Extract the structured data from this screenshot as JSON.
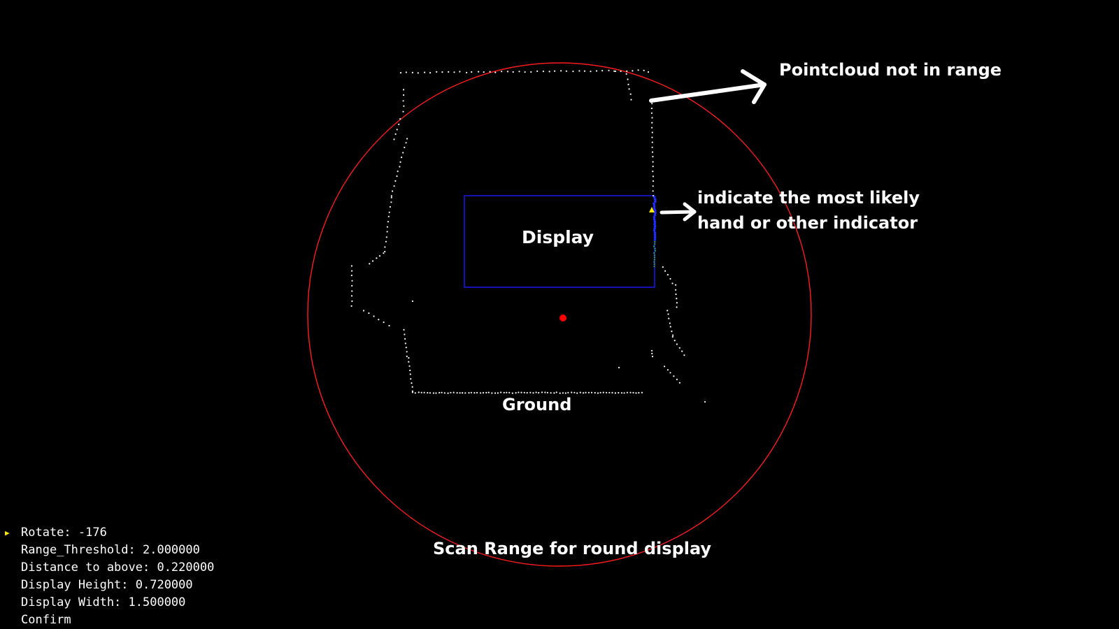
{
  "annotations": {
    "pointcloud": "Pointcloud not in range",
    "indicator_line1": "indicate the most likely",
    "indicator_line2": "hand or other indicator",
    "display": "Display",
    "ground": "Ground",
    "scan_range": "Scan Range for round display"
  },
  "menu": {
    "selected_index": 0,
    "items": [
      "Rotate: -176",
      "Range_Threshold: 2.000000",
      "Distance to above: 0.220000",
      "Display Height: 0.720000",
      "Display Width: 1.500000",
      "Confirm"
    ]
  },
  "colors": {
    "background": "#000000",
    "scan_range_circle": "#ff1a1a",
    "display_rect": "#1a1aff",
    "pointcloud": "#ffffff",
    "sensor_origin": "#ff0000",
    "indicator_points": "#1e2cff",
    "indicator_marker": "#ffeb00",
    "menu_cursor": "#ffeb00"
  },
  "scene": {
    "sensor_origin": "red-dot",
    "indicator_marker": "yellow-triangle",
    "arrows": [
      "arrow-to-pointcloud-label",
      "arrow-to-indicator-label"
    ]
  }
}
